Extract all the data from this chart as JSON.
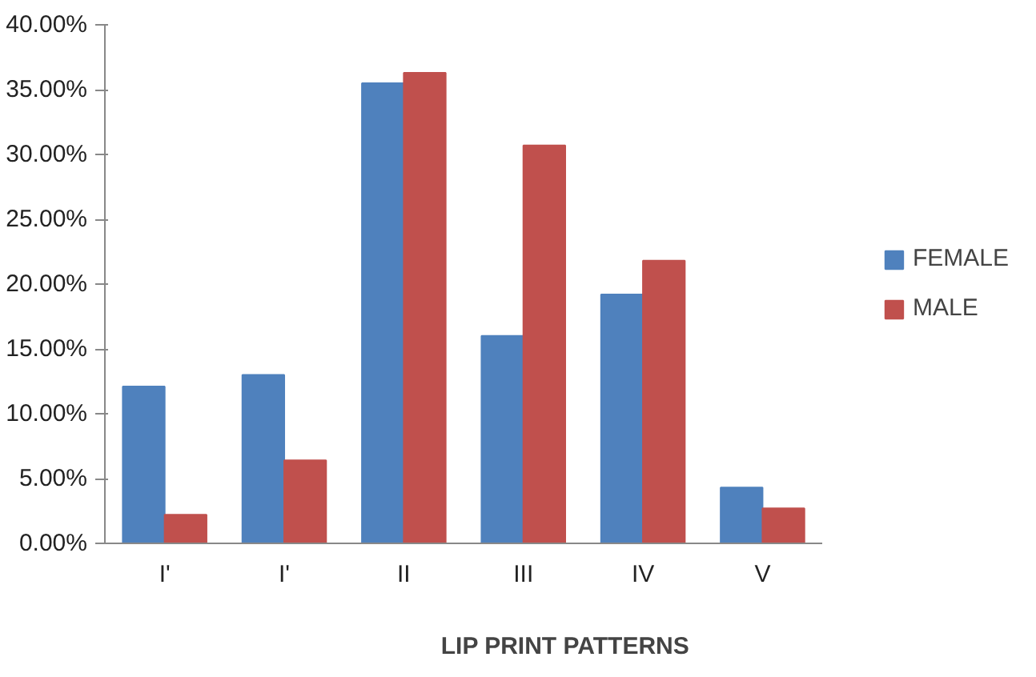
{
  "chart_data": {
    "type": "bar",
    "xlabel": "LIP PRINT PATTERNS",
    "categories": [
      "I'",
      "I'",
      "II",
      "III",
      "IV",
      "V"
    ],
    "series": [
      {
        "name": "FEMALE",
        "color": "#4f81bd",
        "values": [
          12.1,
          13.0,
          35.5,
          16.0,
          19.2,
          4.3
        ]
      },
      {
        "name": "MALE",
        "color": "#c0504d",
        "values": [
          2.2,
          6.4,
          36.3,
          30.7,
          21.8,
          2.7
        ]
      }
    ],
    "ylim": [
      0,
      40
    ],
    "yticks": [
      {
        "value": 0,
        "label": "0.00%"
      },
      {
        "value": 5,
        "label": "5.00%"
      },
      {
        "value": 10,
        "label": "10.00%"
      },
      {
        "value": 15,
        "label": "15.00%"
      },
      {
        "value": 20,
        "label": "20.00%"
      },
      {
        "value": 25,
        "label": "25.00%"
      },
      {
        "value": 30,
        "label": "30.00%"
      },
      {
        "value": 35,
        "label": "35.00%"
      },
      {
        "value": 40,
        "label": "40.00%"
      }
    ],
    "grid": false,
    "legend": "right"
  }
}
